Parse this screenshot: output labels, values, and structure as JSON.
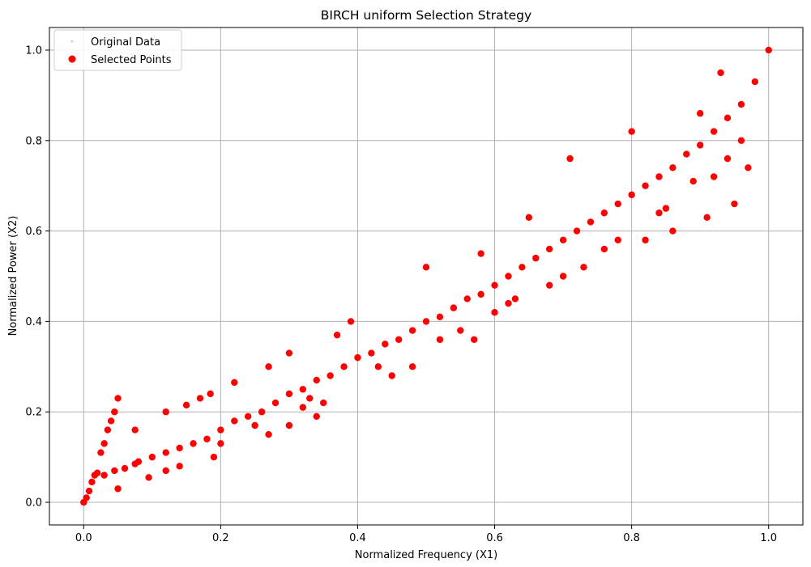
{
  "chart_data": {
    "type": "scatter",
    "title": "BIRCH uniform Selection Strategy",
    "xlabel": "Normalized Frequency (X1)",
    "ylabel": "Normalized Power (X2)",
    "xlim": [
      -0.05,
      1.05
    ],
    "ylim": [
      -0.05,
      1.05
    ],
    "xticks": [
      0.0,
      0.2,
      0.4,
      0.6,
      0.8,
      1.0
    ],
    "yticks": [
      0.0,
      0.2,
      0.4,
      0.6,
      0.8,
      1.0
    ],
    "xtick_labels": [
      "0.0",
      "0.2",
      "0.4",
      "0.6",
      "0.8",
      "1.0"
    ],
    "ytick_labels": [
      "0.0",
      "0.2",
      "0.4",
      "0.6",
      "0.8",
      "1.0"
    ],
    "grid": true,
    "legend": {
      "placement": "upper-left",
      "entries": [
        {
          "label": "Original Data",
          "color": "#add8e6"
        },
        {
          "label": "Selected Points",
          "color": "#ff0000"
        }
      ]
    },
    "series": [
      {
        "name": "Selected Points",
        "color": "#ff0000",
        "points": [
          [
            0.0,
            0.0
          ],
          [
            0.004,
            0.01
          ],
          [
            0.008,
            0.025
          ],
          [
            0.012,
            0.045
          ],
          [
            0.016,
            0.06
          ],
          [
            0.02,
            0.065
          ],
          [
            0.025,
            0.11
          ],
          [
            0.03,
            0.13
          ],
          [
            0.035,
            0.16
          ],
          [
            0.04,
            0.18
          ],
          [
            0.045,
            0.2
          ],
          [
            0.05,
            0.23
          ],
          [
            0.03,
            0.06
          ],
          [
            0.045,
            0.07
          ],
          [
            0.05,
            0.03
          ],
          [
            0.06,
            0.075
          ],
          [
            0.075,
            0.085
          ],
          [
            0.08,
            0.09
          ],
          [
            0.1,
            0.1
          ],
          [
            0.12,
            0.11
          ],
          [
            0.14,
            0.12
          ],
          [
            0.16,
            0.13
          ],
          [
            0.18,
            0.14
          ],
          [
            0.2,
            0.16
          ],
          [
            0.22,
            0.18
          ],
          [
            0.24,
            0.19
          ],
          [
            0.26,
            0.2
          ],
          [
            0.28,
            0.22
          ],
          [
            0.3,
            0.24
          ],
          [
            0.32,
            0.25
          ],
          [
            0.34,
            0.27
          ],
          [
            0.36,
            0.28
          ],
          [
            0.38,
            0.3
          ],
          [
            0.4,
            0.32
          ],
          [
            0.42,
            0.33
          ],
          [
            0.44,
            0.35
          ],
          [
            0.46,
            0.36
          ],
          [
            0.48,
            0.38
          ],
          [
            0.5,
            0.4
          ],
          [
            0.52,
            0.41
          ],
          [
            0.54,
            0.43
          ],
          [
            0.56,
            0.45
          ],
          [
            0.58,
            0.46
          ],
          [
            0.6,
            0.48
          ],
          [
            0.62,
            0.5
          ],
          [
            0.64,
            0.52
          ],
          [
            0.66,
            0.54
          ],
          [
            0.68,
            0.56
          ],
          [
            0.7,
            0.58
          ],
          [
            0.72,
            0.6
          ],
          [
            0.74,
            0.62
          ],
          [
            0.76,
            0.64
          ],
          [
            0.78,
            0.66
          ],
          [
            0.8,
            0.68
          ],
          [
            0.82,
            0.7
          ],
          [
            0.84,
            0.72
          ],
          [
            0.86,
            0.74
          ],
          [
            0.88,
            0.77
          ],
          [
            0.9,
            0.79
          ],
          [
            0.92,
            0.82
          ],
          [
            0.94,
            0.85
          ],
          [
            0.96,
            0.88
          ],
          [
            0.98,
            0.93
          ],
          [
            1.0,
            1.0
          ],
          [
            0.095,
            0.055
          ],
          [
            0.075,
            0.16
          ],
          [
            0.12,
            0.2
          ],
          [
            0.15,
            0.215
          ],
          [
            0.17,
            0.23
          ],
          [
            0.185,
            0.24
          ],
          [
            0.22,
            0.265
          ],
          [
            0.27,
            0.3
          ],
          [
            0.3,
            0.33
          ],
          [
            0.37,
            0.37
          ],
          [
            0.39,
            0.4
          ],
          [
            0.5,
            0.52
          ],
          [
            0.58,
            0.55
          ],
          [
            0.65,
            0.63
          ],
          [
            0.71,
            0.76
          ],
          [
            0.8,
            0.82
          ],
          [
            0.9,
            0.86
          ],
          [
            0.93,
            0.95
          ],
          [
            0.97,
            0.74
          ],
          [
            0.95,
            0.66
          ],
          [
            0.91,
            0.63
          ],
          [
            0.86,
            0.6
          ],
          [
            0.82,
            0.58
          ],
          [
            0.6,
            0.42
          ],
          [
            0.55,
            0.38
          ],
          [
            0.45,
            0.28
          ],
          [
            0.35,
            0.22
          ],
          [
            0.27,
            0.15
          ],
          [
            0.19,
            0.1
          ],
          [
            0.14,
            0.08
          ],
          [
            0.12,
            0.07
          ],
          [
            0.2,
            0.13
          ],
          [
            0.25,
            0.17
          ],
          [
            0.33,
            0.23
          ],
          [
            0.43,
            0.3
          ],
          [
            0.52,
            0.36
          ],
          [
            0.62,
            0.44
          ],
          [
            0.7,
            0.5
          ],
          [
            0.78,
            0.58
          ],
          [
            0.85,
            0.65
          ],
          [
            0.92,
            0.72
          ],
          [
            0.96,
            0.8
          ],
          [
            0.3,
            0.17
          ],
          [
            0.34,
            0.19
          ],
          [
            0.32,
            0.21
          ],
          [
            0.48,
            0.3
          ],
          [
            0.57,
            0.36
          ],
          [
            0.63,
            0.45
          ],
          [
            0.68,
            0.48
          ],
          [
            0.73,
            0.52
          ],
          [
            0.76,
            0.56
          ],
          [
            0.84,
            0.64
          ],
          [
            0.89,
            0.71
          ],
          [
            0.94,
            0.76
          ]
        ]
      }
    ]
  }
}
